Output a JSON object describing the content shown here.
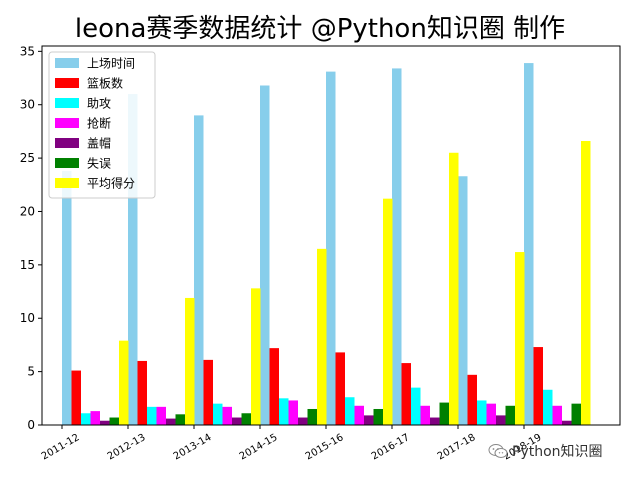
{
  "chart_data": {
    "type": "bar",
    "title": "leona赛季数据统计 @Python知识圈 制作",
    "xlabel": "",
    "ylabel": "",
    "ylim": [
      0,
      35.5
    ],
    "yticks": [
      0,
      5,
      10,
      15,
      20,
      25,
      30,
      35
    ],
    "legend_position": "top-left",
    "grid": false,
    "categories": [
      "2011-12",
      "2012-13",
      "2013-14",
      "2014-15",
      "2015-16",
      "2016-17",
      "2017-18",
      "2018-19"
    ],
    "series": [
      {
        "name": "上场时间",
        "color": "#87ceeb",
        "values": [
          23.8,
          31.0,
          29.0,
          31.8,
          33.1,
          33.4,
          23.3,
          33.9
        ]
      },
      {
        "name": "篮板数",
        "color": "#ff0000",
        "values": [
          5.1,
          6.0,
          6.1,
          7.2,
          6.8,
          5.8,
          4.7,
          7.3
        ]
      },
      {
        "name": "助攻",
        "color": "#00ffff",
        "values": [
          1.1,
          1.7,
          2.0,
          2.5,
          2.6,
          3.5,
          2.3,
          3.3
        ]
      },
      {
        "name": "抢断",
        "color": "#ff00ff",
        "values": [
          1.3,
          1.7,
          1.7,
          2.3,
          1.8,
          1.8,
          2.0,
          1.8
        ]
      },
      {
        "name": "盖帽",
        "color": "#800080",
        "values": [
          0.4,
          0.6,
          0.7,
          0.7,
          0.9,
          0.7,
          0.9,
          0.4
        ]
      },
      {
        "name": "失误",
        "color": "#008000",
        "values": [
          0.7,
          1.0,
          1.1,
          1.5,
          1.5,
          2.1,
          1.8,
          2.0
        ]
      },
      {
        "name": "平均得分",
        "color": "#ffff00",
        "values": [
          7.9,
          11.9,
          12.8,
          16.5,
          21.2,
          25.5,
          16.2,
          26.6
        ]
      }
    ]
  },
  "watermark": {
    "text": "Python知识圈",
    "icon": "wechat-icon"
  }
}
